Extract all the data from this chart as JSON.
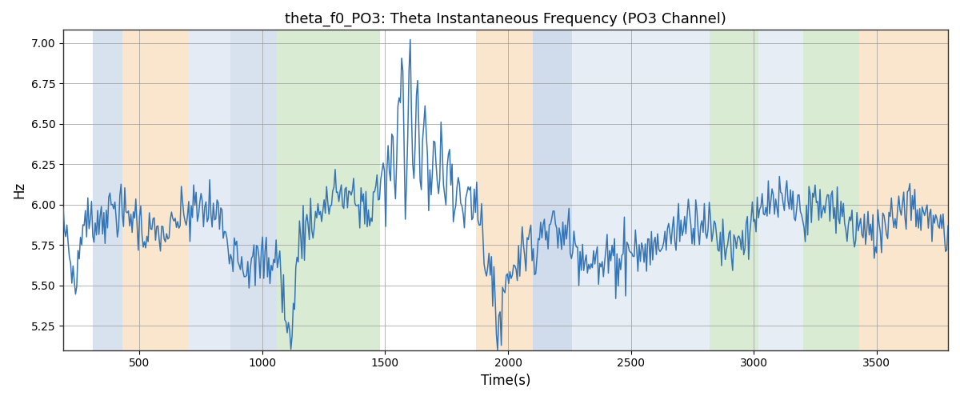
{
  "title": "theta_f0_PO3: Theta Instantaneous Frequency (PO3 Channel)",
  "xlabel": "Time(s)",
  "ylabel": "Hz",
  "ylim": [
    5.1,
    7.08
  ],
  "xlim": [
    190,
    3790
  ],
  "yticks": [
    5.25,
    5.5,
    5.75,
    6.0,
    6.25,
    6.5,
    6.75,
    7.0
  ],
  "xticks": [
    500,
    1000,
    1500,
    2000,
    2500,
    3000,
    3500
  ],
  "line_color": "#3575b5",
  "line_width": 1.1,
  "bg_color": "#ffffff",
  "grid_color": "#999999",
  "bands": [
    {
      "start": 310,
      "end": 430,
      "color": "#aabfdd",
      "alpha": 0.45
    },
    {
      "start": 430,
      "end": 700,
      "color": "#f5c990",
      "alpha": 0.45
    },
    {
      "start": 700,
      "end": 870,
      "color": "#aabfdd",
      "alpha": 0.3
    },
    {
      "start": 870,
      "end": 1060,
      "color": "#aabfdd",
      "alpha": 0.45
    },
    {
      "start": 1060,
      "end": 1200,
      "color": "#b5d8a8",
      "alpha": 0.5
    },
    {
      "start": 1200,
      "end": 1480,
      "color": "#b5d8a8",
      "alpha": 0.5
    },
    {
      "start": 1870,
      "end": 2100,
      "color": "#f5c990",
      "alpha": 0.45
    },
    {
      "start": 2100,
      "end": 2260,
      "color": "#aabfdd",
      "alpha": 0.55
    },
    {
      "start": 2260,
      "end": 2430,
      "color": "#aabfdd",
      "alpha": 0.28
    },
    {
      "start": 2430,
      "end": 2620,
      "color": "#aabfdd",
      "alpha": 0.28
    },
    {
      "start": 2620,
      "end": 2820,
      "color": "#aabfdd",
      "alpha": 0.28
    },
    {
      "start": 2820,
      "end": 3020,
      "color": "#b5d8a8",
      "alpha": 0.5
    },
    {
      "start": 3020,
      "end": 3200,
      "color": "#aabfdd",
      "alpha": 0.28
    },
    {
      "start": 3200,
      "end": 3430,
      "color": "#b5d8a8",
      "alpha": 0.5
    },
    {
      "start": 3430,
      "end": 3680,
      "color": "#f5c990",
      "alpha": 0.45
    },
    {
      "start": 3680,
      "end": 3790,
      "color": "#f5c990",
      "alpha": 0.45
    }
  ],
  "seed": 7,
  "n_points": 720
}
